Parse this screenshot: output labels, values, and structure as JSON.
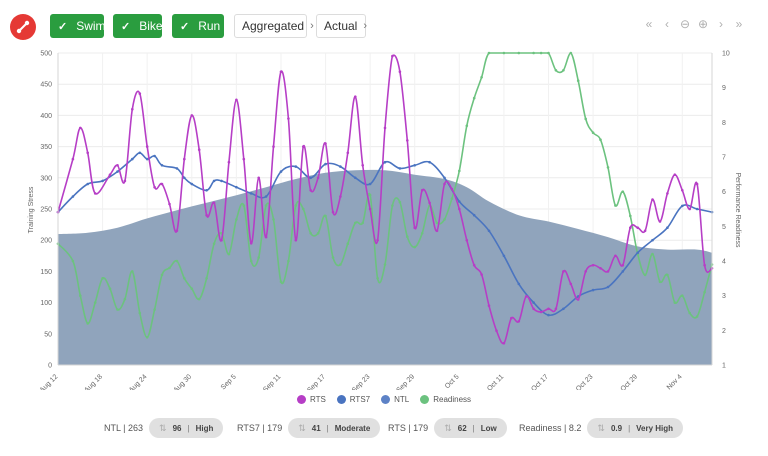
{
  "toolbar": {
    "filters": [
      {
        "label": "Swim",
        "checked": true
      },
      {
        "label": "Bike",
        "checked": true
      },
      {
        "label": "Run",
        "checked": true
      }
    ],
    "aggregation": "Aggregated",
    "mode": "Actual",
    "nav_icons": [
      "«",
      "‹",
      "⊖",
      "⊕",
      "›",
      "»"
    ]
  },
  "colors": {
    "rts": "#b63ec6",
    "rts7": "#4a74c0",
    "ntl": "#8a9fb8",
    "readiness": "#6cc27f",
    "check": "#2a9d3f",
    "logo": "#e53935"
  },
  "chart_data": {
    "type": "line",
    "title": "",
    "y_left_label": "Training Stress",
    "y_right_label": "Performance Readiness",
    "y_left_ticks": [
      "0",
      "50",
      "100",
      "150",
      "200",
      "250",
      "300",
      "350",
      "400",
      "450",
      "500"
    ],
    "y_right_ticks": [
      "1",
      "2",
      "3",
      "4",
      "5",
      "6",
      "7",
      "8",
      "9",
      "10"
    ],
    "ylim_left": [
      0,
      500
    ],
    "ylim_right": [
      1,
      10
    ],
    "x_tick_labels": [
      "Aug 12",
      "Aug 18",
      "Aug 24",
      "Aug 30",
      "Sep 5",
      "Sep 11",
      "Sep 17",
      "Sep 23",
      "Sep 29",
      "Oct 5",
      "Oct 11",
      "Oct 17",
      "Oct 23",
      "Oct 29",
      "Nov 4"
    ],
    "x_tick_days": [
      0,
      6,
      12,
      18,
      24,
      30,
      36,
      42,
      48,
      54,
      60,
      66,
      72,
      78,
      84
    ],
    "x_range_days": [
      0,
      87
    ],
    "series": [
      {
        "name": "RTS",
        "axis": "left",
        "area": false,
        "values": [
          [
            0,
            245
          ],
          [
            2,
            330
          ],
          [
            3,
            380
          ],
          [
            4,
            340
          ],
          [
            5,
            275
          ],
          [
            7,
            305
          ],
          [
            8,
            320
          ],
          [
            9,
            295
          ],
          [
            10,
            410
          ],
          [
            11,
            435
          ],
          [
            12,
            350
          ],
          [
            13,
            285
          ],
          [
            14,
            290
          ],
          [
            15,
            258
          ],
          [
            16,
            215
          ],
          [
            17,
            330
          ],
          [
            18,
            400
          ],
          [
            19,
            345
          ],
          [
            20,
            240
          ],
          [
            21,
            260
          ],
          [
            22,
            200
          ],
          [
            23,
            325
          ],
          [
            24,
            425
          ],
          [
            25,
            330
          ],
          [
            26,
            195
          ],
          [
            27,
            300
          ],
          [
            28,
            205
          ],
          [
            29,
            350
          ],
          [
            30,
            470
          ],
          [
            31,
            395
          ],
          [
            32,
            200
          ],
          [
            33,
            350
          ],
          [
            34,
            280
          ],
          [
            35,
            300
          ],
          [
            36,
            355
          ],
          [
            37,
            245
          ],
          [
            38,
            270
          ],
          [
            39,
            340
          ],
          [
            40,
            430
          ],
          [
            41,
            320
          ],
          [
            42,
            250
          ],
          [
            43,
            200
          ],
          [
            44,
            380
          ],
          [
            45,
            495
          ],
          [
            46,
            470
          ],
          [
            47,
            360
          ],
          [
            48,
            220
          ],
          [
            49,
            280
          ],
          [
            50,
            260
          ],
          [
            51,
            215
          ],
          [
            52,
            290
          ],
          [
            53,
            282
          ],
          [
            54,
            250
          ],
          [
            55,
            200
          ],
          [
            56,
            160
          ],
          [
            57,
            145
          ],
          [
            58,
            95
          ],
          [
            59,
            55
          ],
          [
            60,
            35
          ],
          [
            61,
            75
          ],
          [
            62,
            70
          ],
          [
            63,
            110
          ],
          [
            64,
            90
          ],
          [
            65,
            85
          ],
          [
            66,
            90
          ],
          [
            67,
            90
          ],
          [
            68,
            150
          ],
          [
            69,
            130
          ],
          [
            70,
            105
          ],
          [
            71,
            150
          ],
          [
            72,
            160
          ],
          [
            73,
            155
          ],
          [
            74,
            150
          ],
          [
            75,
            175
          ],
          [
            76,
            160
          ],
          [
            77,
            220
          ],
          [
            78,
            220
          ],
          [
            79,
            215
          ],
          [
            80,
            265
          ],
          [
            81,
            230
          ],
          [
            82,
            275
          ],
          [
            83,
            305
          ],
          [
            84,
            280
          ],
          [
            85,
            250
          ],
          [
            86,
            290
          ],
          [
            87,
            160
          ],
          [
            88,
            155
          ]
        ]
      },
      {
        "name": "RTS7",
        "axis": "left",
        "area": false,
        "values": [
          [
            0,
            245
          ],
          [
            2,
            270
          ],
          [
            4,
            290
          ],
          [
            6,
            295
          ],
          [
            8,
            310
          ],
          [
            10,
            330
          ],
          [
            11,
            340
          ],
          [
            12,
            330
          ],
          [
            13,
            335
          ],
          [
            14,
            320
          ],
          [
            16,
            315
          ],
          [
            17,
            300
          ],
          [
            18,
            290
          ],
          [
            20,
            280
          ],
          [
            21,
            295
          ],
          [
            22,
            295
          ],
          [
            24,
            285
          ],
          [
            26,
            275
          ],
          [
            28,
            270
          ],
          [
            30,
            310
          ],
          [
            32,
            318
          ],
          [
            34,
            300
          ],
          [
            36,
            322
          ],
          [
            38,
            318
          ],
          [
            40,
            300
          ],
          [
            42,
            290
          ],
          [
            44,
            325
          ],
          [
            46,
            315
          ],
          [
            48,
            320
          ],
          [
            50,
            325
          ],
          [
            52,
            300
          ],
          [
            54,
            262
          ],
          [
            56,
            240
          ],
          [
            58,
            215
          ],
          [
            60,
            175
          ],
          [
            62,
            130
          ],
          [
            64,
            100
          ],
          [
            66,
            80
          ],
          [
            68,
            90
          ],
          [
            70,
            110
          ],
          [
            72,
            120
          ],
          [
            74,
            125
          ],
          [
            76,
            150
          ],
          [
            78,
            180
          ],
          [
            80,
            200
          ],
          [
            82,
            220
          ],
          [
            84,
            255
          ],
          [
            86,
            250
          ],
          [
            88,
            245
          ]
        ]
      },
      {
        "name": "NTL",
        "axis": "left",
        "area": true,
        "values": [
          [
            0,
            210
          ],
          [
            4,
            212
          ],
          [
            8,
            220
          ],
          [
            12,
            235
          ],
          [
            16,
            248
          ],
          [
            20,
            260
          ],
          [
            24,
            272
          ],
          [
            28,
            285
          ],
          [
            32,
            298
          ],
          [
            36,
            308
          ],
          [
            40,
            312
          ],
          [
            44,
            312
          ],
          [
            48,
            305
          ],
          [
            52,
            298
          ],
          [
            55,
            285
          ],
          [
            58,
            262
          ],
          [
            62,
            240
          ],
          [
            66,
            230
          ],
          [
            70,
            218
          ],
          [
            74,
            205
          ],
          [
            78,
            190
          ],
          [
            82,
            185
          ],
          [
            86,
            185
          ],
          [
            88,
            180
          ]
        ]
      },
      {
        "name": "Readiness",
        "axis": "right",
        "area": false,
        "values": [
          [
            0,
            4.5
          ],
          [
            2,
            4.0
          ],
          [
            3,
            3.0
          ],
          [
            4,
            2.2
          ],
          [
            5,
            2.8
          ],
          [
            6,
            3.5
          ],
          [
            7,
            3.2
          ],
          [
            8,
            2.6
          ],
          [
            9,
            2.9
          ],
          [
            10,
            3.7
          ],
          [
            11,
            2.5
          ],
          [
            12,
            1.8
          ],
          [
            13,
            2.6
          ],
          [
            14,
            3.6
          ],
          [
            15,
            3.8
          ],
          [
            16,
            4.0
          ],
          [
            17,
            3.5
          ],
          [
            18,
            3.2
          ],
          [
            19,
            2.9
          ],
          [
            20,
            3.5
          ],
          [
            21,
            4.5
          ],
          [
            22,
            4.8
          ],
          [
            23,
            4.2
          ],
          [
            24,
            5.2
          ],
          [
            25,
            5.6
          ],
          [
            26,
            4.0
          ],
          [
            27,
            4.1
          ],
          [
            28,
            5.6
          ],
          [
            29,
            5.2
          ],
          [
            30,
            3.4
          ],
          [
            31,
            4.0
          ],
          [
            32,
            5.6
          ],
          [
            33,
            5.5
          ],
          [
            34,
            4.8
          ],
          [
            35,
            4.8
          ],
          [
            36,
            5.3
          ],
          [
            37,
            4.1
          ],
          [
            38,
            3.9
          ],
          [
            39,
            4.5
          ],
          [
            40,
            5.1
          ],
          [
            41,
            5.1
          ],
          [
            42,
            5.9
          ],
          [
            43,
            3.5
          ],
          [
            44,
            3.9
          ],
          [
            45,
            5.6
          ],
          [
            46,
            5.7
          ],
          [
            47,
            4.7
          ],
          [
            48,
            4.4
          ],
          [
            49,
            4.8
          ],
          [
            50,
            5.6
          ],
          [
            51,
            5.1
          ],
          [
            52,
            5.2
          ],
          [
            53,
            5.8
          ],
          [
            54,
            6.6
          ],
          [
            55,
            7.9
          ],
          [
            56,
            8.7
          ],
          [
            57,
            9.3
          ],
          [
            58,
            10
          ],
          [
            60,
            10
          ],
          [
            62,
            10
          ],
          [
            64,
            10
          ],
          [
            65,
            10
          ],
          [
            66,
            10
          ],
          [
            67,
            9.5
          ],
          [
            68,
            9.5
          ],
          [
            69,
            10
          ],
          [
            70,
            9.2
          ],
          [
            71,
            8.1
          ],
          [
            72,
            7.7
          ],
          [
            73,
            7.5
          ],
          [
            74,
            6.7
          ],
          [
            75,
            5.6
          ],
          [
            76,
            6.0
          ],
          [
            77,
            5.3
          ],
          [
            78,
            4.2
          ],
          [
            79,
            3.6
          ],
          [
            80,
            4.2
          ],
          [
            81,
            3.4
          ],
          [
            82,
            3.6
          ],
          [
            83,
            2.8
          ],
          [
            84,
            3.0
          ],
          [
            85,
            2.5
          ],
          [
            86,
            2.4
          ],
          [
            87,
            3.1
          ],
          [
            88,
            3.9
          ]
        ]
      }
    ],
    "legend": [
      {
        "label": "RTS",
        "color_key": "rts"
      },
      {
        "label": "RTS7",
        "color_key": "rts7"
      },
      {
        "label": "NTL",
        "color_key": "ntl"
      },
      {
        "label": "Readiness",
        "color_key": "readiness"
      }
    ]
  },
  "stats": [
    {
      "label": "NTL | 263",
      "value": "96",
      "level": "High"
    },
    {
      "label": "RTS7 | 179",
      "value": "41",
      "level": "Moderate"
    },
    {
      "label": "RTS | 179",
      "value": "62",
      "level": "Low"
    },
    {
      "label": "Readiness | 8.2",
      "value": "0.9",
      "level": "Very High"
    }
  ]
}
